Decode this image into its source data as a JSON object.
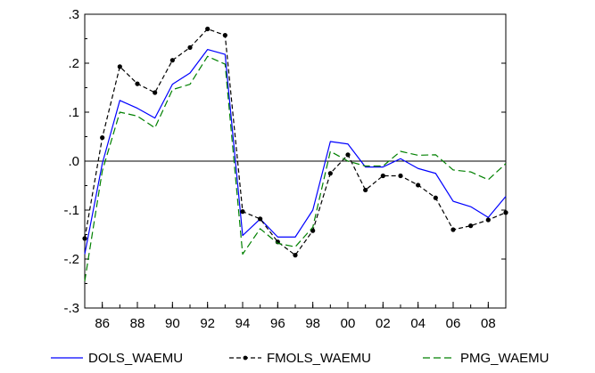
{
  "chart_data": {
    "type": "line",
    "x": [
      1985,
      1986,
      1987,
      1988,
      1989,
      1990,
      1991,
      1992,
      1993,
      1994,
      1995,
      1996,
      1997,
      1998,
      1999,
      2000,
      2001,
      2002,
      2003,
      2004,
      2005,
      2006,
      2007,
      2008,
      2009
    ],
    "x_tick_values": [
      1986,
      1988,
      1990,
      1992,
      1994,
      1996,
      1998,
      2000,
      2002,
      2004,
      2006,
      2008
    ],
    "x_tick_labels": [
      "86",
      "88",
      "90",
      "92",
      "94",
      "96",
      "98",
      "00",
      "02",
      "04",
      "06",
      "08"
    ],
    "y_tick_values": [
      -0.3,
      -0.2,
      -0.1,
      0.0,
      0.1,
      0.2,
      0.3
    ],
    "y_tick_labels": [
      "-.3",
      "-.2",
      "-.1",
      ".0",
      ".1",
      ".2",
      ".3"
    ],
    "xlim": [
      1985,
      2009
    ],
    "ylim": [
      -0.3,
      0.3
    ],
    "zero_line": true,
    "grid": false,
    "legend_position": "bottom",
    "series": [
      {
        "name": "DOLS_WAEMU",
        "color": "#0000ff",
        "style": "solid",
        "values": [
          -0.19,
          -0.005,
          0.124,
          0.108,
          0.088,
          0.157,
          0.18,
          0.228,
          0.218,
          -0.152,
          -0.118,
          -0.155,
          -0.155,
          -0.1,
          0.04,
          0.035,
          -0.012,
          -0.012,
          0.005,
          -0.015,
          -0.025,
          -0.082,
          -0.093,
          -0.115,
          -0.072
        ]
      },
      {
        "name": "FMOLS_WAEMU",
        "color": "#000000",
        "style": "dashed-dots",
        "values": [
          -0.158,
          0.048,
          0.193,
          0.158,
          0.14,
          0.206,
          0.232,
          0.27,
          0.257,
          -0.103,
          -0.118,
          -0.165,
          -0.192,
          -0.142,
          -0.025,
          0.013,
          -0.059,
          -0.03,
          -0.03,
          -0.049,
          -0.075,
          -0.14,
          -0.132,
          -0.12,
          -0.105
        ]
      },
      {
        "name": "PMG_WAEMU",
        "color": "#008000",
        "style": "dashed",
        "values": [
          -0.245,
          -0.02,
          0.1,
          0.092,
          0.068,
          0.146,
          0.157,
          0.214,
          0.198,
          -0.19,
          -0.138,
          -0.168,
          -0.175,
          -0.135,
          0.02,
          0.0,
          -0.01,
          -0.01,
          0.02,
          0.012,
          0.013,
          -0.018,
          -0.022,
          -0.038,
          -0.005
        ]
      }
    ]
  }
}
